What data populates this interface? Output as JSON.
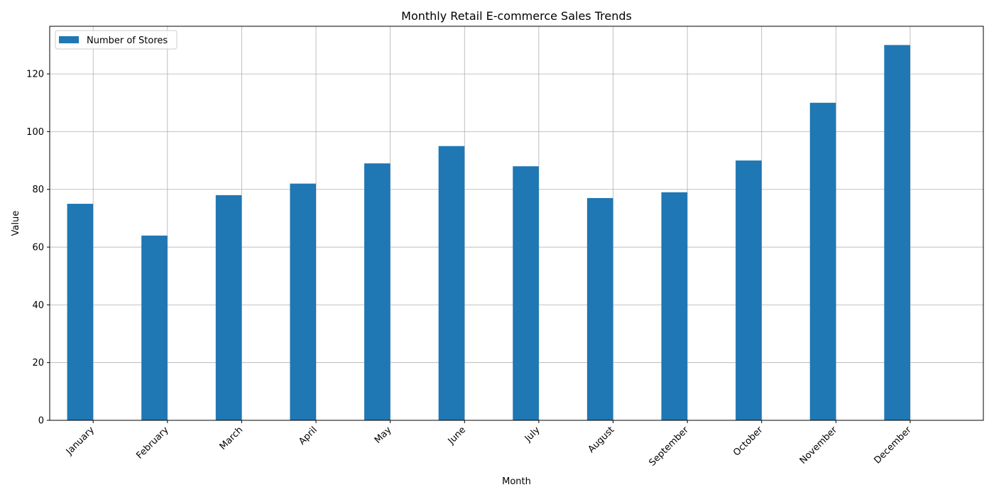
{
  "chart_data": {
    "type": "bar",
    "title": "Monthly Retail E-commerce Sales Trends",
    "xlabel": "Month",
    "ylabel": "Value",
    "categories": [
      "January",
      "February",
      "March",
      "April",
      "May",
      "June",
      "July",
      "August",
      "September",
      "October",
      "November",
      "December"
    ],
    "series": [
      {
        "name": "Number of Stores",
        "values": [
          75,
          64,
          78,
          82,
          89,
          95,
          88,
          77,
          79,
          90,
          110,
          130
        ],
        "color": "#1f77b4"
      }
    ],
    "ylim": [
      0,
      136.5
    ],
    "yticks": [
      0,
      20,
      40,
      60,
      80,
      100,
      120
    ],
    "grid": true,
    "legend_position": "top-left"
  }
}
